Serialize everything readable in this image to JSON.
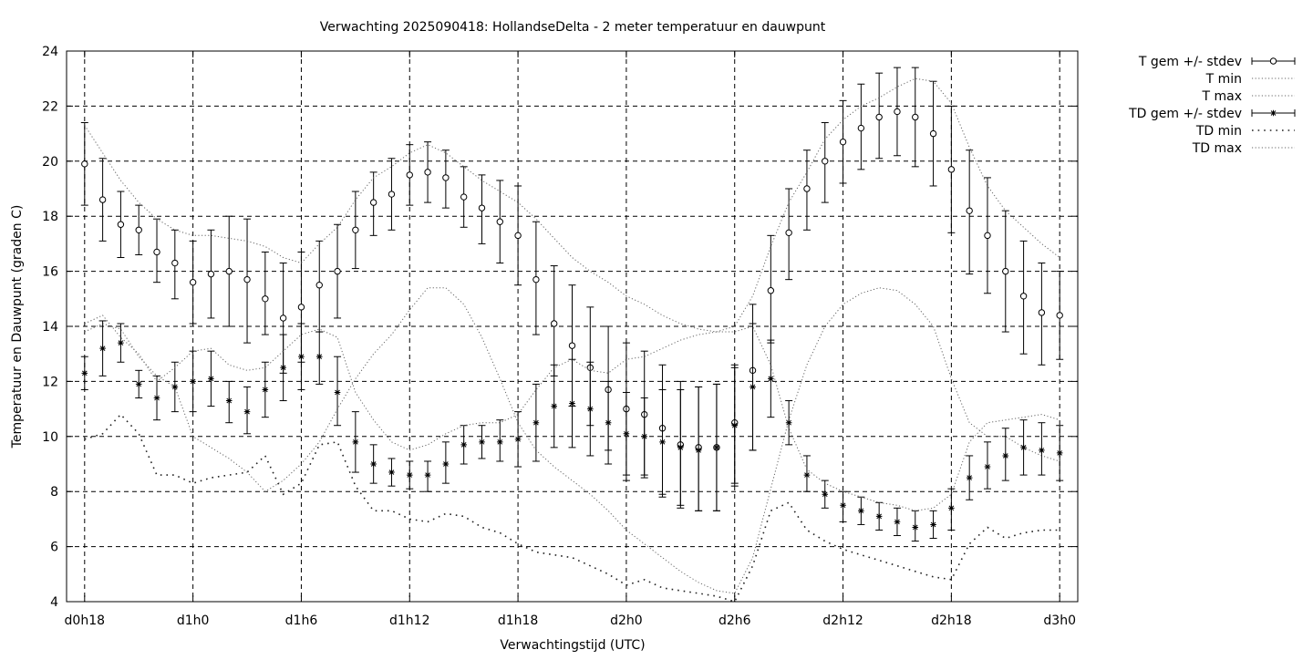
{
  "chart_data": {
    "type": "line",
    "title": "Verwachting 2025090418: HollandseDelta - 2 meter temperatuur en dauwpunt",
    "xlabel": "Verwachtingstijd (UTC)",
    "ylabel": "Temperatuur en Dauwpunt (graden C)",
    "xlim": [
      17,
      73
    ],
    "ylim": [
      4,
      24
    ],
    "grid": true,
    "legend_position": "outside-right",
    "x_ticks": [
      {
        "x": 18,
        "label": "d0h18"
      },
      {
        "x": 24,
        "label": "d1h0"
      },
      {
        "x": 30,
        "label": "d1h6"
      },
      {
        "x": 36,
        "label": "d1h12"
      },
      {
        "x": 42,
        "label": "d1h18"
      },
      {
        "x": 48,
        "label": "d2h0"
      },
      {
        "x": 54,
        "label": "d2h6"
      },
      {
        "x": 60,
        "label": "d2h12"
      },
      {
        "x": 66,
        "label": "d2h18"
      },
      {
        "x": 72,
        "label": "d3h0"
      }
    ],
    "y_ticks": [
      4,
      6,
      8,
      10,
      12,
      14,
      16,
      18,
      20,
      22,
      24
    ],
    "x": [
      18,
      19,
      20,
      21,
      22,
      23,
      24,
      25,
      26,
      27,
      28,
      29,
      30,
      31,
      32,
      33,
      34,
      35,
      36,
      37,
      38,
      39,
      40,
      41,
      42,
      43,
      44,
      45,
      46,
      47,
      48,
      49,
      50,
      51,
      52,
      53,
      54,
      55,
      56,
      57,
      58,
      59,
      60,
      61,
      62,
      63,
      64,
      65,
      66,
      67,
      68,
      69,
      70,
      71,
      72
    ],
    "series": [
      {
        "name": "T gem +/- stdev",
        "style": "errorbars-circle",
        "values": [
          19.9,
          18.6,
          17.7,
          17.5,
          16.7,
          16.3,
          15.6,
          15.9,
          16.0,
          15.7,
          15.0,
          14.3,
          14.7,
          15.5,
          16.0,
          17.5,
          18.5,
          18.8,
          19.5,
          19.6,
          19.4,
          18.7,
          18.3,
          17.8,
          17.3,
          15.7,
          14.1,
          13.3,
          12.5,
          11.7,
          11.0,
          10.8,
          10.3,
          9.7,
          9.6,
          9.6,
          10.5,
          12.4,
          15.3,
          17.4,
          19.0,
          20.0,
          20.7,
          21.2,
          21.6,
          21.8,
          21.6,
          21.0,
          19.7,
          18.2,
          17.3,
          16.0,
          15.1,
          14.5,
          14.4
        ],
        "lower": [
          18.4,
          17.1,
          16.5,
          16.6,
          15.6,
          15.0,
          14.1,
          14.3,
          14.0,
          13.4,
          13.7,
          12.3,
          12.7,
          13.8,
          14.3,
          16.1,
          17.3,
          17.5,
          18.4,
          18.5,
          18.3,
          17.6,
          17.0,
          16.3,
          15.5,
          13.7,
          12.2,
          11.1,
          10.4,
          9.5,
          8.4,
          8.5,
          7.8,
          7.4,
          7.3,
          7.3,
          8.2,
          9.5,
          13.4,
          15.7,
          17.5,
          18.5,
          19.2,
          19.7,
          20.1,
          20.2,
          19.8,
          19.1,
          17.4,
          15.9,
          15.2,
          13.8,
          13.0,
          12.6,
          12.8
        ],
        "upper": [
          21.4,
          20.1,
          18.9,
          18.4,
          17.9,
          17.5,
          17.1,
          17.5,
          18.0,
          17.9,
          16.7,
          16.3,
          16.7,
          17.1,
          17.7,
          18.9,
          19.6,
          20.1,
          20.6,
          20.7,
          20.4,
          19.8,
          19.5,
          19.3,
          19.1,
          17.8,
          16.2,
          15.5,
          14.7,
          14.0,
          13.4,
          13.1,
          12.6,
          12.0,
          11.8,
          11.9,
          12.6,
          14.8,
          17.3,
          19.0,
          20.4,
          21.4,
          22.2,
          22.8,
          23.2,
          23.4,
          23.4,
          22.9,
          22.0,
          20.4,
          19.4,
          18.2,
          17.1,
          16.3,
          16.0
        ]
      },
      {
        "name": "T min",
        "style": "dotted",
        "values": [
          13.8,
          14.1,
          13.9,
          12.9,
          12.2,
          11.8,
          10.0,
          9.6,
          9.2,
          8.7,
          8.0,
          8.4,
          9.0,
          9.8,
          11.0,
          12.1,
          13.0,
          13.7,
          14.6,
          15.4,
          15.4,
          14.8,
          13.6,
          12.1,
          10.5,
          9.5,
          8.9,
          8.4,
          7.9,
          7.3,
          6.6,
          6.1,
          5.6,
          5.1,
          4.7,
          4.4,
          4.3,
          5.6,
          8.1,
          10.6,
          12.6,
          14.0,
          14.8,
          15.2,
          15.4,
          15.3,
          14.8,
          14.0,
          12.1,
          10.5,
          10.0,
          10.0,
          9.6,
          9.3,
          9.1
        ]
      },
      {
        "name": "T max",
        "style": "dotted",
        "values": [
          21.3,
          20.3,
          19.3,
          18.5,
          17.9,
          17.5,
          17.3,
          17.3,
          17.2,
          17.1,
          16.9,
          16.5,
          16.3,
          17.0,
          17.6,
          18.6,
          19.4,
          19.8,
          20.3,
          20.6,
          20.3,
          19.8,
          19.3,
          18.9,
          18.5,
          17.9,
          17.2,
          16.5,
          16.0,
          15.6,
          15.1,
          14.8,
          14.4,
          14.1,
          13.9,
          13.8,
          14.0,
          15.1,
          16.9,
          18.5,
          19.6,
          20.8,
          21.5,
          22.0,
          22.3,
          22.7,
          23.0,
          22.9,
          22.1,
          20.5,
          19.1,
          18.2,
          17.6,
          17.0,
          16.5
        ]
      },
      {
        "name": "TD gem +/- stdev",
        "style": "errorbars-star",
        "values": [
          12.3,
          13.2,
          13.4,
          11.9,
          11.4,
          11.8,
          12.0,
          12.1,
          11.3,
          10.9,
          11.7,
          12.5,
          12.9,
          12.9,
          11.6,
          9.8,
          9.0,
          8.7,
          8.6,
          8.6,
          9.0,
          9.7,
          9.8,
          9.8,
          9.9,
          10.5,
          11.1,
          11.2,
          11.0,
          10.5,
          10.1,
          10.0,
          9.8,
          9.6,
          9.5,
          9.6,
          10.4,
          11.8,
          12.1,
          10.5,
          8.6,
          7.9,
          7.5,
          7.3,
          7.1,
          6.9,
          6.7,
          6.8,
          7.4,
          8.5,
          8.9,
          9.3,
          9.6,
          9.5,
          9.4
        ],
        "lower": [
          11.7,
          12.2,
          12.7,
          11.4,
          10.6,
          10.9,
          10.9,
          11.1,
          10.5,
          10.1,
          10.7,
          11.3,
          11.7,
          11.9,
          10.4,
          8.7,
          8.3,
          8.2,
          8.1,
          8.0,
          8.3,
          9.0,
          9.2,
          9.1,
          8.9,
          9.1,
          9.6,
          9.6,
          9.3,
          9.0,
          8.6,
          8.6,
          7.9,
          7.5,
          7.3,
          7.3,
          8.3,
          9.5,
          10.7,
          9.7,
          8.0,
          7.4,
          6.9,
          6.8,
          6.6,
          6.4,
          6.2,
          6.3,
          6.6,
          7.7,
          8.1,
          8.4,
          8.6,
          8.6,
          8.4
        ],
        "upper": [
          12.9,
          14.2,
          14.1,
          12.4,
          12.2,
          12.7,
          13.1,
          13.1,
          12.0,
          11.8,
          12.7,
          13.7,
          14.1,
          13.8,
          12.9,
          10.9,
          9.7,
          9.2,
          9.1,
          9.1,
          9.8,
          10.4,
          10.4,
          10.6,
          10.9,
          11.9,
          12.6,
          12.8,
          12.7,
          12.0,
          11.6,
          11.4,
          11.7,
          11.7,
          11.8,
          11.9,
          12.5,
          14.1,
          13.5,
          11.3,
          9.3,
          8.4,
          8.0,
          7.8,
          7.6,
          7.4,
          7.3,
          7.3,
          8.1,
          9.3,
          9.8,
          10.3,
          10.6,
          10.5,
          10.4
        ]
      },
      {
        "name": "TD min",
        "style": "loose-dotted",
        "values": [
          9.9,
          10.1,
          10.8,
          10.1,
          8.6,
          8.6,
          8.3,
          8.5,
          8.6,
          8.7,
          9.3,
          7.9,
          8.3,
          9.7,
          9.8,
          8.2,
          7.3,
          7.3,
          7.0,
          6.9,
          7.2,
          7.1,
          6.7,
          6.5,
          6.1,
          5.8,
          5.7,
          5.6,
          5.3,
          5.0,
          4.6,
          4.8,
          4.5,
          4.4,
          4.3,
          4.2,
          4.0,
          5.3,
          7.3,
          7.6,
          6.6,
          6.2,
          5.9,
          5.7,
          5.5,
          5.3,
          5.1,
          4.9,
          4.8,
          6.1,
          6.7,
          6.3,
          6.5,
          6.6,
          6.6
        ]
      },
      {
        "name": "TD max",
        "style": "dotted",
        "values": [
          14.1,
          14.4,
          13.6,
          13.0,
          12.0,
          12.5,
          13.1,
          13.2,
          12.6,
          12.4,
          12.5,
          13.1,
          13.7,
          13.9,
          13.6,
          11.6,
          10.6,
          9.8,
          9.5,
          9.7,
          10.1,
          10.4,
          10.5,
          10.5,
          10.8,
          11.7,
          12.5,
          12.8,
          12.4,
          12.3,
          12.8,
          12.9,
          13.2,
          13.5,
          13.7,
          13.8,
          13.8,
          14.0,
          12.6,
          10.3,
          8.8,
          8.3,
          8.0,
          7.8,
          7.6,
          7.5,
          7.3,
          7.4,
          7.9,
          9.8,
          10.5,
          10.6,
          10.7,
          10.8,
          10.6
        ]
      }
    ]
  }
}
